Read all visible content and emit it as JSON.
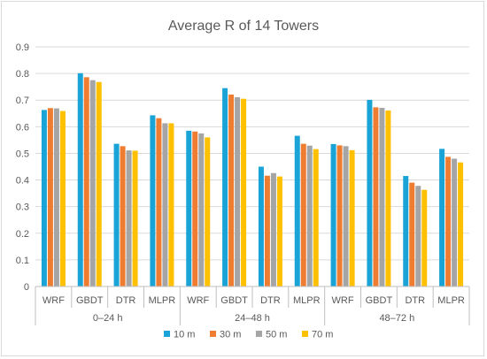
{
  "chart_data": {
    "type": "bar",
    "title": "Average R of 14 Towers",
    "xlabel": "",
    "ylabel": "",
    "ylim": [
      0,
      0.9
    ],
    "yticks": [
      "0",
      "0.1",
      "0.2",
      "0.3",
      "0.4",
      "0.5",
      "0.6",
      "0.7",
      "0.8",
      "0.9"
    ],
    "grid": true,
    "legend_position": "bottom",
    "groups": [
      {
        "label": "0–24 h",
        "categories": [
          "WRF",
          "GBDT",
          "DTR",
          "MLPR"
        ]
      },
      {
        "label": "24–48 h",
        "categories": [
          "WRF",
          "GBDT",
          "DTR",
          "MLPR"
        ]
      },
      {
        "label": "48–72 h",
        "categories": [
          "WRF",
          "GBDT",
          "DTR",
          "MLPR"
        ]
      }
    ],
    "series": [
      {
        "name": "10 m",
        "color": "#1aa3d6",
        "values": [
          0.663,
          0.801,
          0.536,
          0.643,
          0.585,
          0.745,
          0.45,
          0.566,
          0.535,
          0.701,
          0.415,
          0.517
        ]
      },
      {
        "name": "30 m",
        "color": "#ef7d31",
        "values": [
          0.67,
          0.786,
          0.527,
          0.632,
          0.582,
          0.721,
          0.416,
          0.536,
          0.53,
          0.673,
          0.39,
          0.487
        ]
      },
      {
        "name": "50 m",
        "color": "#a5a5a5",
        "values": [
          0.669,
          0.775,
          0.511,
          0.613,
          0.575,
          0.711,
          0.426,
          0.529,
          0.527,
          0.671,
          0.378,
          0.48
        ]
      },
      {
        "name": "70 m",
        "color": "#ffc000",
        "values": [
          0.659,
          0.768,
          0.51,
          0.613,
          0.56,
          0.705,
          0.413,
          0.516,
          0.512,
          0.661,
          0.363,
          0.466
        ]
      }
    ]
  }
}
